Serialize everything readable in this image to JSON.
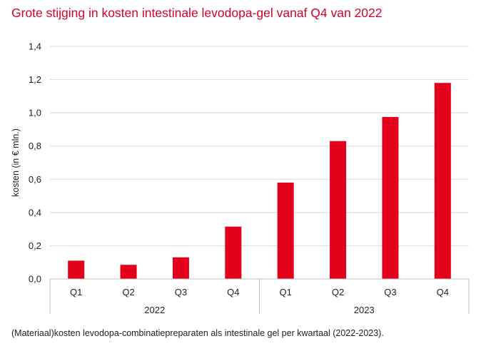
{
  "title": "Grote stijging in kosten intestinale levodopa-gel vanaf Q4 van 2022",
  "caption": "(Materiaal)kosten levodopa-combinatiepreparaten als intestinale gel per kwartaal (2022-2023).",
  "colors": {
    "bar": "#e2001a",
    "title": "#d7002a",
    "grid": "#d9d9d9",
    "axis": "#bfbfbf"
  },
  "chart_data": {
    "type": "bar",
    "title": "Grote stijging in kosten intestinale levodopa-gel vanaf Q4 van 2022",
    "ylabel": "kosten (in € mln.)",
    "xlabel": "",
    "ylim": [
      0,
      1.4
    ],
    "yticks": [
      "0,0",
      "0,2",
      "0,4",
      "0,6",
      "0,8",
      "1,0",
      "1,2",
      "1,4"
    ],
    "grid": true,
    "categories": [
      "Q1",
      "Q2",
      "Q3",
      "Q4",
      "Q1",
      "Q2",
      "Q3",
      "Q4"
    ],
    "groups": [
      {
        "label": "2022",
        "count": 4
      },
      {
        "label": "2023",
        "count": 4
      }
    ],
    "values": [
      0.11,
      0.085,
      0.13,
      0.315,
      0.58,
      0.83,
      0.975,
      1.18
    ]
  }
}
